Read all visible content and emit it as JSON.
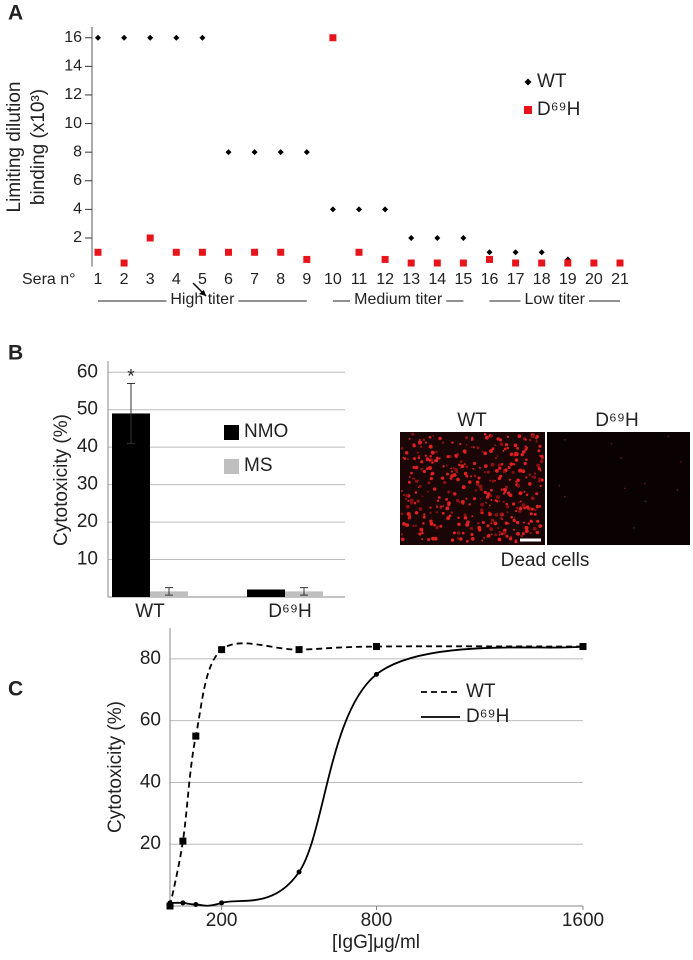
{
  "chart_data": [
    {
      "type": "scatter",
      "panel_label": "A",
      "y_label": [
        "Limiting dilution",
        "binding (x10³)"
      ],
      "x_label": "Sera n°",
      "categories": [
        "1",
        "2",
        "3",
        "4",
        "5",
        "6",
        "7",
        "8",
        "9",
        "10",
        "11",
        "12",
        "13",
        "14",
        "15",
        "16",
        "17",
        "18",
        "19",
        "20",
        "21"
      ],
      "series": [
        {
          "name": "WT",
          "color": "#000000",
          "marker": "diamond",
          "values": [
            16,
            16,
            16,
            16,
            16,
            8,
            8,
            8,
            8,
            4,
            4,
            4,
            2,
            2,
            2,
            1,
            1,
            1,
            0.5,
            null,
            null
          ]
        },
        {
          "name": "D⁶⁹H",
          "color": "#e8141b",
          "marker": "square",
          "values": [
            1,
            0.25,
            2,
            1,
            1,
            1,
            1,
            1,
            0.5,
            16,
            1,
            0.5,
            0.25,
            0.25,
            0.25,
            0.5,
            0.25,
            0.25,
            0.25,
            0.25,
            0.25
          ]
        }
      ],
      "ylim": [
        0,
        16.75
      ],
      "yticks": [
        2,
        4,
        6,
        8,
        10,
        12,
        14,
        16
      ],
      "groups": [
        "High titer",
        "Medium titer",
        "Low titer"
      ]
    },
    {
      "type": "bar",
      "panel_label": "B",
      "y_label": "Cytotoxicity (%)",
      "categories": [
        "WT",
        "D⁶⁹H"
      ],
      "series": [
        {
          "name": "NMO",
          "color": "#000000",
          "values": [
            49,
            2
          ],
          "errors": [
            8,
            0
          ]
        },
        {
          "name": "MS",
          "color": "#bfbfbf",
          "values": [
            1.5,
            1.5
          ],
          "errors": [
            1,
            1
          ]
        }
      ],
      "ylim": [
        0,
        63
      ],
      "yticks": [
        10,
        20,
        30,
        40,
        50,
        60
      ],
      "grid": true,
      "significance": "*"
    },
    {
      "type": "line",
      "panel_label": "C",
      "y_label": "Cytotoxicity (%)",
      "x_label": "[IgG]μg/ml",
      "x": [
        0,
        50,
        100,
        200,
        500,
        800,
        1600
      ],
      "series": [
        {
          "name": "WT",
          "color": "#000000",
          "dash": true,
          "marker": "square",
          "values": [
            0,
            21,
            55,
            83,
            83,
            84,
            84
          ]
        },
        {
          "name": "D⁶⁹H",
          "color": "#000000",
          "dash": false,
          "marker": "dot",
          "values": [
            1,
            1,
            0.5,
            1,
            11,
            75,
            84
          ]
        }
      ],
      "xlim": [
        0,
        1600
      ],
      "xticks": [
        200,
        800,
        1600
      ],
      "ylim": [
        0,
        90
      ],
      "yticks": [
        20,
        40,
        60,
        80
      ],
      "grid": true
    }
  ],
  "micrograph": {
    "labels": [
      "WT",
      "D⁶⁹H"
    ],
    "caption": "Dead cells"
  }
}
